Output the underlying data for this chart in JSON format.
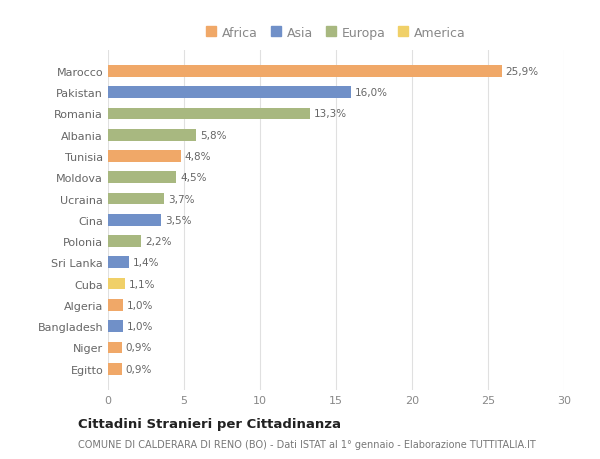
{
  "countries": [
    "Marocco",
    "Pakistan",
    "Romania",
    "Albania",
    "Tunisia",
    "Moldova",
    "Ucraina",
    "Cina",
    "Polonia",
    "Sri Lanka",
    "Cuba",
    "Algeria",
    "Bangladesh",
    "Niger",
    "Egitto"
  ],
  "values": [
    25.9,
    16.0,
    13.3,
    5.8,
    4.8,
    4.5,
    3.7,
    3.5,
    2.2,
    1.4,
    1.1,
    1.0,
    1.0,
    0.9,
    0.9
  ],
  "labels": [
    "25,9%",
    "16,0%",
    "13,3%",
    "5,8%",
    "4,8%",
    "4,5%",
    "3,7%",
    "3,5%",
    "2,2%",
    "1,4%",
    "1,1%",
    "1,0%",
    "1,0%",
    "0,9%",
    "0,9%"
  ],
  "continents": [
    "Africa",
    "Asia",
    "Europa",
    "Europa",
    "Africa",
    "Europa",
    "Europa",
    "Asia",
    "Europa",
    "Asia",
    "America",
    "Africa",
    "Asia",
    "Africa",
    "Africa"
  ],
  "colors": {
    "Africa": "#F0A868",
    "Asia": "#7090C8",
    "Europa": "#A8B880",
    "America": "#F0D068"
  },
  "legend_order": [
    "Africa",
    "Asia",
    "Europa",
    "America"
  ],
  "title": "Cittadini Stranieri per Cittadinanza",
  "subtitle": "COMUNE DI CALDERARA DI RENO (BO) - Dati ISTAT al 1° gennaio - Elaborazione TUTTITALIA.IT",
  "xlim": [
    0,
    30
  ],
  "xticks": [
    0,
    5,
    10,
    15,
    20,
    25,
    30
  ],
  "bg_color": "#ffffff",
  "grid_color": "#e0e0e0"
}
